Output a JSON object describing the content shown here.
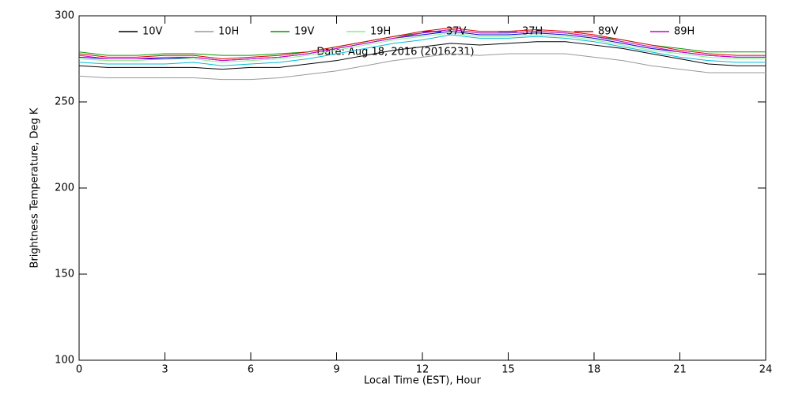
{
  "chart_data": {
    "type": "line",
    "annotation": "Date: Aug 18, 2016 (2016231)",
    "x_label": "Local Time (EST), Hour",
    "y_label": "Brightness Temperature, Deg K",
    "x": [
      0,
      1,
      2,
      3,
      4,
      5,
      6,
      7,
      8,
      9,
      10,
      11,
      12,
      13,
      14,
      15,
      16,
      17,
      18,
      19,
      20,
      21,
      22,
      23,
      24
    ],
    "xlim": [
      0,
      24
    ],
    "xticks": [
      0,
      3,
      6,
      9,
      12,
      15,
      18,
      21,
      24
    ],
    "ylim": [
      100,
      300
    ],
    "yticks": [
      100,
      150,
      200,
      250,
      300
    ],
    "series": [
      {
        "name": "10V",
        "color": "#000000",
        "values": [
          271,
          270,
          270,
          270,
          270,
          269,
          270,
          270,
          272,
          274,
          277,
          280,
          282,
          284,
          283,
          284,
          285,
          285,
          283,
          281,
          278,
          275,
          272,
          271,
          271
        ]
      },
      {
        "name": "10H",
        "color": "#999999",
        "values": [
          265,
          264,
          264,
          264,
          264,
          263,
          263,
          264,
          266,
          268,
          271,
          274,
          276,
          278,
          277,
          278,
          278,
          278,
          276,
          274,
          271,
          269,
          267,
          267,
          267
        ]
      },
      {
        "name": "19V",
        "color": "#009900",
        "values": [
          279,
          277,
          277,
          278,
          278,
          277,
          277,
          278,
          279,
          282,
          285,
          288,
          290,
          292,
          290,
          290,
          291,
          290,
          288,
          286,
          283,
          281,
          279,
          279,
          279
        ]
      },
      {
        "name": "19H",
        "color": "#88ee88",
        "values": [
          275,
          274,
          274,
          275,
          275,
          273,
          274,
          275,
          277,
          280,
          283,
          286,
          288,
          290,
          288,
          288,
          289,
          288,
          286,
          283,
          280,
          278,
          276,
          275,
          275
        ]
      },
      {
        "name": "37V",
        "color": "#0000cc",
        "values": [
          276,
          275,
          275,
          275,
          276,
          274,
          275,
          276,
          278,
          281,
          284,
          287,
          289,
          291,
          289,
          289,
          290,
          289,
          287,
          284,
          281,
          279,
          277,
          276,
          276
        ]
      },
      {
        "name": "37H",
        "color": "#00bbdd",
        "values": [
          273,
          272,
          272,
          272,
          273,
          271,
          272,
          273,
          275,
          278,
          281,
          284,
          286,
          289,
          287,
          287,
          288,
          287,
          285,
          282,
          279,
          276,
          274,
          273,
          273
        ]
      },
      {
        "name": "89V",
        "color": "#dd0000",
        "values": [
          278,
          276,
          276,
          277,
          277,
          275,
          276,
          277,
          279,
          282,
          285,
          288,
          291,
          293,
          291,
          291,
          292,
          291,
          289,
          286,
          283,
          280,
          278,
          277,
          277
        ]
      },
      {
        "name": "89H",
        "color": "#cc00cc",
        "values": [
          277,
          275,
          275,
          276,
          276,
          274,
          275,
          276,
          278,
          281,
          284,
          287,
          290,
          292,
          290,
          290,
          291,
          290,
          288,
          285,
          282,
          279,
          277,
          276,
          276
        ]
      }
    ]
  }
}
